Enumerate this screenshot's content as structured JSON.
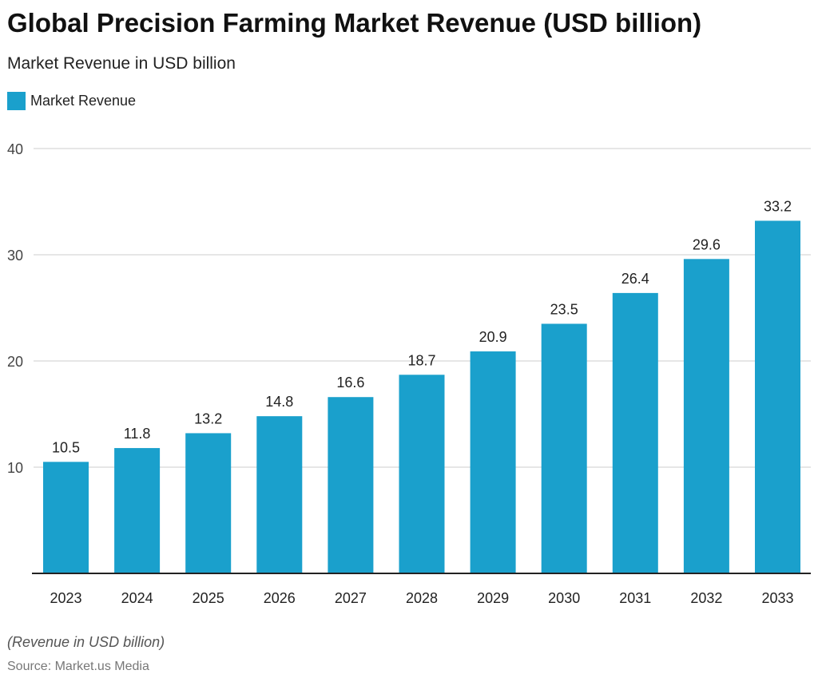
{
  "chart_data": {
    "type": "bar",
    "title": "Global Precision Farming Market Revenue (USD billion)",
    "subtitle": "Market Revenue in USD billion",
    "categories": [
      "2023",
      "2024",
      "2025",
      "2026",
      "2027",
      "2028",
      "2029",
      "2030",
      "2031",
      "2032",
      "2033"
    ],
    "series": [
      {
        "name": "Market Revenue",
        "values": [
          10.5,
          11.8,
          13.2,
          14.8,
          16.6,
          18.7,
          20.9,
          23.5,
          26.4,
          29.6,
          33.2
        ]
      }
    ],
    "ylim": [
      0,
      40
    ],
    "yticks": [
      10,
      20,
      30,
      40
    ],
    "grid": true,
    "legend": "top-left",
    "color": "#1aa0cc",
    "note": "(Revenue in USD billion)",
    "source": "Source: Market.us Media"
  }
}
